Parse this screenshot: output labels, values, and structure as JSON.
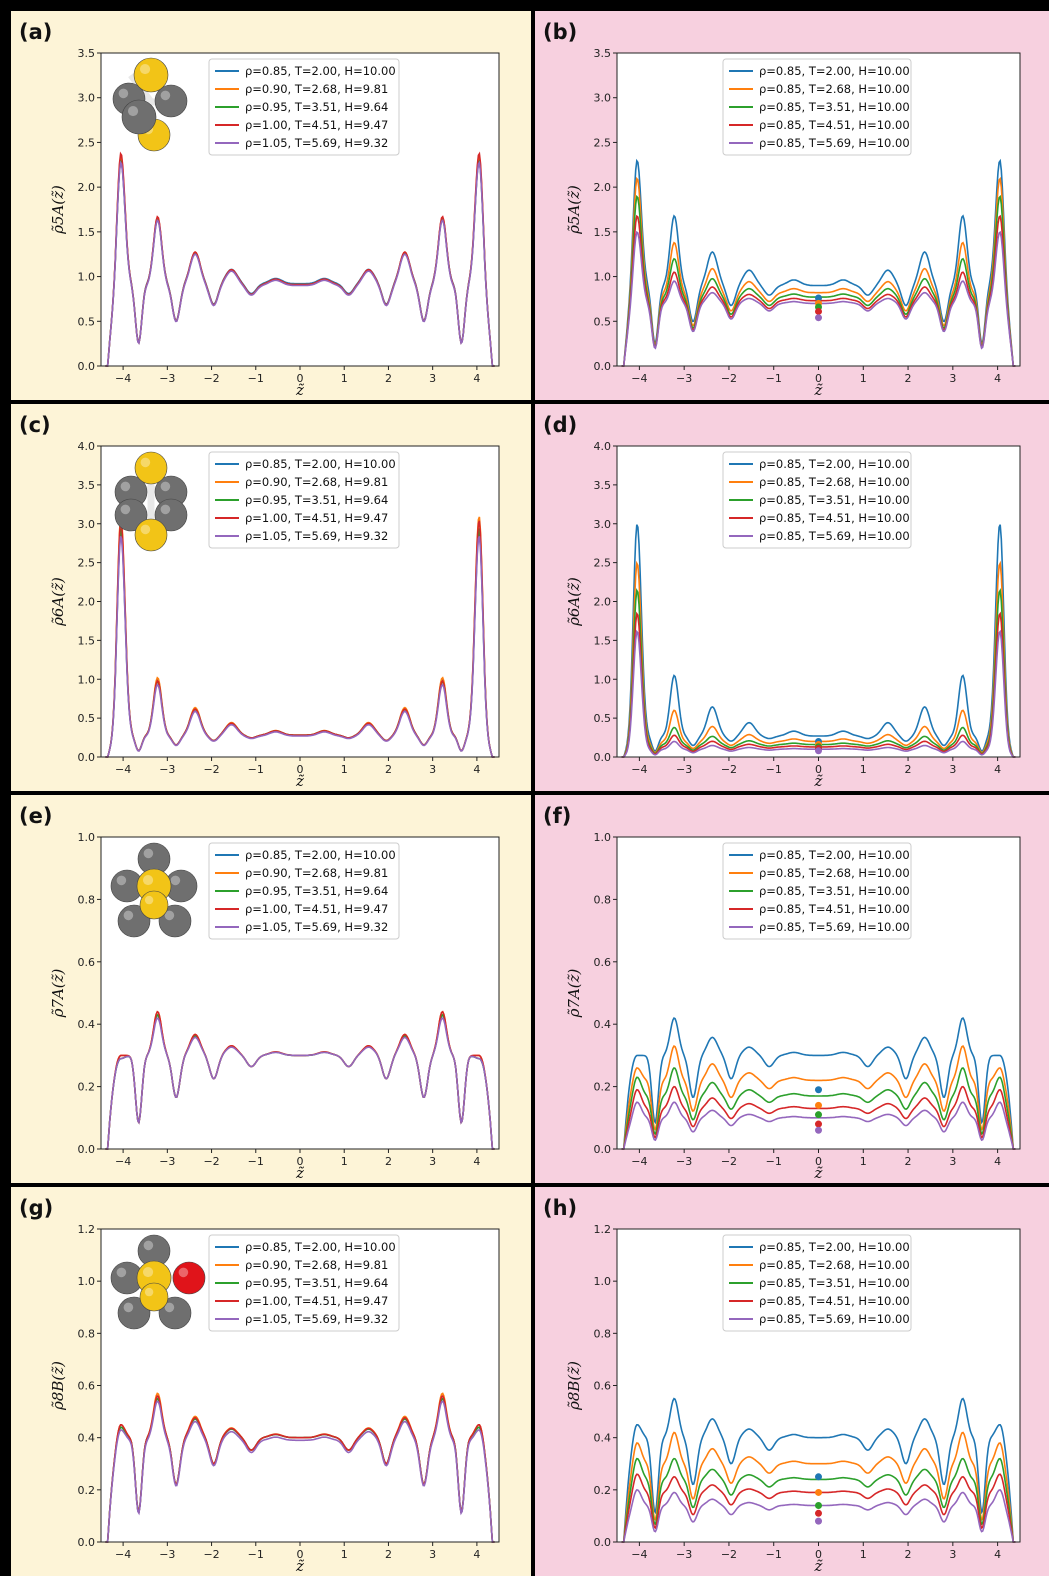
{
  "colors": {
    "series": [
      "#1f77b4",
      "#ff7f0e",
      "#2ca02c",
      "#d62728",
      "#9467bd"
    ],
    "left_bg": "#fdf4d7",
    "right_bg": "#f7d0df",
    "yellow_particle": "#f2c417",
    "grey_particle": "#6f6f6f",
    "red_particle": "#e0141a"
  },
  "icons": [
    "cluster-5A-icon",
    "cluster-6A-icon",
    "cluster-7A-icon",
    "cluster-8B-icon"
  ],
  "chart_data": [
    {
      "panel": "(a)",
      "type": "line",
      "xlabel": "z̃",
      "ylabel": "ρ̃5A(z̃)",
      "ylim": [
        0,
        3.5
      ],
      "yticks": [
        "0.0",
        "0.5",
        "1.0",
        "1.5",
        "2.0",
        "2.5",
        "3.0",
        "3.5"
      ],
      "xlim": [
        -4.5,
        4.5
      ],
      "xticks": [
        "−4",
        "−3",
        "−2",
        "−1",
        "0",
        "1",
        "2",
        "3",
        "4"
      ],
      "legend": [
        "ρ=0.85, T=2.00, H=10.00",
        "ρ=0.90, T=2.68, H=9.81",
        "ρ=0.95, T=3.51, H=9.64",
        "ρ=1.00, T=4.51, H=9.47",
        "ρ=1.05, T=5.69, H=9.32"
      ],
      "series": [
        {
          "name": "ρ=0.85, T=2.00, H=10.00",
          "wall": 2.3,
          "peak2": 1.65,
          "mid": 0.92
        },
        {
          "name": "ρ=0.90, T=2.68, H=9.81",
          "wall": 2.35,
          "peak2": 1.66,
          "mid": 0.91
        },
        {
          "name": "ρ=0.95, T=3.51, H=9.64",
          "wall": 2.3,
          "peak2": 1.64,
          "mid": 0.91
        },
        {
          "name": "ρ=1.00, T=4.51, H=9.47",
          "wall": 2.38,
          "peak2": 1.67,
          "mid": 0.91
        },
        {
          "name": "ρ=1.05, T=5.69, H=9.32",
          "wall": 2.28,
          "peak2": 1.63,
          "mid": 0.9
        }
      ],
      "points": []
    },
    {
      "panel": "(b)",
      "type": "line",
      "xlabel": "z̃",
      "ylabel": "ρ̃5A(z̃)",
      "ylim": [
        0,
        3.5
      ],
      "yticks": [
        "0.0",
        "0.5",
        "1.0",
        "1.5",
        "2.0",
        "2.5",
        "3.0",
        "3.5"
      ],
      "xlim": [
        -4.5,
        4.5
      ],
      "xticks": [
        "−4",
        "−3",
        "−2",
        "−1",
        "0",
        "1",
        "2",
        "3",
        "4"
      ],
      "legend": [
        "ρ=0.85, T=2.00, H=10.00",
        "ρ=0.85, T=2.68, H=10.00",
        "ρ=0.85, T=3.51, H=10.00",
        "ρ=0.85, T=4.51, H=10.00",
        "ρ=0.85, T=5.69, H=10.00"
      ],
      "series": [
        {
          "name": "ρ=0.85, T=2.00, H=10.00",
          "wall": 2.3,
          "peak2": 1.68,
          "mid": 0.9
        },
        {
          "name": "ρ=0.85, T=2.68, H=10.00",
          "wall": 2.1,
          "peak2": 1.38,
          "mid": 0.82
        },
        {
          "name": "ρ=0.85, T=3.51, H=10.00",
          "wall": 1.9,
          "peak2": 1.2,
          "mid": 0.77
        },
        {
          "name": "ρ=0.85, T=4.51, H=10.00",
          "wall": 1.68,
          "peak2": 1.05,
          "mid": 0.73
        },
        {
          "name": "ρ=0.85, T=5.69, H=10.00",
          "wall": 1.5,
          "peak2": 0.95,
          "mid": 0.7
        }
      ],
      "points": [
        0.76,
        0.7,
        0.66,
        0.61,
        0.54
      ]
    },
    {
      "panel": "(c)",
      "type": "line",
      "xlabel": "z̃",
      "ylabel": "ρ̃6A(z̃)",
      "ylim": [
        0,
        4.0
      ],
      "yticks": [
        "0.0",
        "0.5",
        "1.0",
        "1.5",
        "2.0",
        "2.5",
        "3.0",
        "3.5",
        "4.0"
      ],
      "xlim": [
        -4.5,
        4.5
      ],
      "xticks": [
        "−4",
        "−3",
        "−2",
        "−1",
        "0",
        "1",
        "2",
        "3",
        "4"
      ],
      "legend": [
        "ρ=0.85, T=2.00, H=10.00",
        "ρ=0.90, T=2.68, H=9.81",
        "ρ=0.95, T=3.51, H=9.64",
        "ρ=1.00, T=4.51, H=9.47",
        "ρ=1.05, T=5.69, H=9.32"
      ],
      "series": [
        {
          "name": "ρ=0.85, T=2.00, H=10.00",
          "wall": 2.9,
          "peak2": 1.0,
          "mid": 0.28
        },
        {
          "name": "ρ=0.90, T=2.68, H=9.81",
          "wall": 3.1,
          "peak2": 1.02,
          "mid": 0.28
        },
        {
          "name": "ρ=0.95, T=3.51, H=9.64",
          "wall": 2.95,
          "peak2": 0.97,
          "mid": 0.28
        },
        {
          "name": "ρ=1.00, T=4.51, H=9.47",
          "wall": 3.05,
          "peak2": 0.98,
          "mid": 0.28
        },
        {
          "name": "ρ=1.05, T=5.69, H=9.32",
          "wall": 2.85,
          "peak2": 0.93,
          "mid": 0.27
        }
      ],
      "points": []
    },
    {
      "panel": "(d)",
      "type": "line",
      "xlabel": "z̃",
      "ylabel": "ρ̃6A(z̃)",
      "ylim": [
        0,
        4.0
      ],
      "yticks": [
        "0.0",
        "0.5",
        "1.0",
        "1.5",
        "2.0",
        "2.5",
        "3.0",
        "3.5",
        "4.0"
      ],
      "xlim": [
        -4.5,
        4.5
      ],
      "xticks": [
        "−4",
        "−3",
        "−2",
        "−1",
        "0",
        "1",
        "2",
        "3",
        "4"
      ],
      "legend": [
        "ρ=0.85, T=2.00, H=10.00",
        "ρ=0.85, T=2.68, H=10.00",
        "ρ=0.85, T=3.51, H=10.00",
        "ρ=0.85, T=4.51, H=10.00",
        "ρ=0.85, T=5.69, H=10.00"
      ],
      "series": [
        {
          "name": "ρ=0.85, T=2.00, H=10.00",
          "wall": 3.0,
          "peak2": 1.05,
          "mid": 0.27
        },
        {
          "name": "ρ=0.85, T=2.68, H=10.00",
          "wall": 2.5,
          "peak2": 0.6,
          "mid": 0.2
        },
        {
          "name": "ρ=0.85, T=3.51, H=10.00",
          "wall": 2.15,
          "peak2": 0.38,
          "mid": 0.16
        },
        {
          "name": "ρ=0.85, T=4.51, H=10.00",
          "wall": 1.85,
          "peak2": 0.28,
          "mid": 0.13
        },
        {
          "name": "ρ=0.85, T=5.69, H=10.00",
          "wall": 1.62,
          "peak2": 0.2,
          "mid": 0.1
        }
      ],
      "points": [
        0.2,
        0.16,
        0.13,
        0.11,
        0.08
      ]
    },
    {
      "panel": "(e)",
      "type": "line",
      "xlabel": "z̃",
      "ylabel": "ρ̃7A(z̃)",
      "ylim": [
        0,
        1.0
      ],
      "yticks": [
        "0.0",
        "0.2",
        "0.4",
        "0.6",
        "0.8",
        "1.0"
      ],
      "xlim": [
        -4.5,
        4.5
      ],
      "xticks": [
        "−4",
        "−3",
        "−2",
        "−1",
        "0",
        "1",
        "2",
        "3",
        "4"
      ],
      "legend": [
        "ρ=0.85, T=2.00, H=10.00",
        "ρ=0.90, T=2.68, H=9.81",
        "ρ=0.95, T=3.51, H=9.64",
        "ρ=1.00, T=4.51, H=9.47",
        "ρ=1.05, T=5.69, H=9.32"
      ],
      "series": [
        {
          "name": "ρ=0.85, T=2.00, H=10.00",
          "wall": 0.29,
          "peak2": 0.43,
          "mid": 0.3
        },
        {
          "name": "ρ=0.90, T=2.68, H=9.81",
          "wall": 0.3,
          "peak2": 0.44,
          "mid": 0.3
        },
        {
          "name": "ρ=0.95, T=3.51, H=9.64",
          "wall": 0.29,
          "peak2": 0.43,
          "mid": 0.3
        },
        {
          "name": "ρ=1.00, T=4.51, H=9.47",
          "wall": 0.3,
          "peak2": 0.44,
          "mid": 0.3
        },
        {
          "name": "ρ=1.05, T=5.69, H=9.32",
          "wall": 0.29,
          "peak2": 0.42,
          "mid": 0.3
        }
      ],
      "points": []
    },
    {
      "panel": "(f)",
      "type": "line",
      "xlabel": "z̃",
      "ylabel": "ρ̃7A(z̃)",
      "ylim": [
        0,
        1.0
      ],
      "yticks": [
        "0.0",
        "0.2",
        "0.4",
        "0.6",
        "0.8",
        "1.0"
      ],
      "xlim": [
        -4.5,
        4.5
      ],
      "xticks": [
        "−4",
        "−3",
        "−2",
        "−1",
        "0",
        "1",
        "2",
        "3",
        "4"
      ],
      "legend": [
        "ρ=0.85, T=2.00, H=10.00",
        "ρ=0.85, T=2.68, H=10.00",
        "ρ=0.85, T=3.51, H=10.00",
        "ρ=0.85, T=4.51, H=10.00",
        "ρ=0.85, T=5.69, H=10.00"
      ],
      "series": [
        {
          "name": "ρ=0.85, T=2.00, H=10.00",
          "wall": 0.3,
          "peak2": 0.42,
          "mid": 0.3
        },
        {
          "name": "ρ=0.85, T=2.68, H=10.00",
          "wall": 0.26,
          "peak2": 0.33,
          "mid": 0.22
        },
        {
          "name": "ρ=0.85, T=3.51, H=10.00",
          "wall": 0.23,
          "peak2": 0.26,
          "mid": 0.17
        },
        {
          "name": "ρ=0.85, T=4.51, H=10.00",
          "wall": 0.19,
          "peak2": 0.2,
          "mid": 0.13
        },
        {
          "name": "ρ=0.85, T=5.69, H=10.00",
          "wall": 0.15,
          "peak2": 0.15,
          "mid": 0.1
        }
      ],
      "points": [
        0.19,
        0.14,
        0.11,
        0.08,
        0.06
      ]
    },
    {
      "panel": "(g)",
      "type": "line",
      "xlabel": "z̃",
      "ylabel": "ρ̃8B(z̃)",
      "ylim": [
        0,
        1.2
      ],
      "yticks": [
        "0.0",
        "0.2",
        "0.4",
        "0.6",
        "0.8",
        "1.0",
        "1.2"
      ],
      "xlim": [
        -4.5,
        4.5
      ],
      "xticks": [
        "−4",
        "−3",
        "−2",
        "−1",
        "0",
        "1",
        "2",
        "3",
        "4"
      ],
      "legend": [
        "ρ=0.85, T=2.00, H=10.00",
        "ρ=0.90, T=2.68, H=9.81",
        "ρ=0.95, T=3.51, H=9.64",
        "ρ=1.00, T=4.51, H=9.47",
        "ρ=1.05, T=5.69, H=9.32"
      ],
      "series": [
        {
          "name": "ρ=0.85, T=2.00, H=10.00",
          "wall": 0.44,
          "peak2": 0.55,
          "mid": 0.4
        },
        {
          "name": "ρ=0.90, T=2.68, H=9.81",
          "wall": 0.45,
          "peak2": 0.57,
          "mid": 0.4
        },
        {
          "name": "ρ=0.95, T=3.51, H=9.64",
          "wall": 0.44,
          "peak2": 0.55,
          "mid": 0.4
        },
        {
          "name": "ρ=1.00, T=4.51, H=9.47",
          "wall": 0.45,
          "peak2": 0.56,
          "mid": 0.4
        },
        {
          "name": "ρ=1.05, T=5.69, H=9.32",
          "wall": 0.43,
          "peak2": 0.54,
          "mid": 0.39
        }
      ],
      "points": []
    },
    {
      "panel": "(h)",
      "type": "line",
      "xlabel": "z̃",
      "ylabel": "ρ̃8B(z̃)",
      "ylim": [
        0,
        1.2
      ],
      "yticks": [
        "0.0",
        "0.2",
        "0.4",
        "0.6",
        "0.8",
        "1.0",
        "1.2"
      ],
      "xlim": [
        -4.5,
        4.5
      ],
      "xticks": [
        "−4",
        "−3",
        "−2",
        "−1",
        "0",
        "1",
        "2",
        "3",
        "4"
      ],
      "legend": [
        "ρ=0.85, T=2.00, H=10.00",
        "ρ=0.85, T=2.68, H=10.00",
        "ρ=0.85, T=3.51, H=10.00",
        "ρ=0.85, T=4.51, H=10.00",
        "ρ=0.85, T=5.69, H=10.00"
      ],
      "series": [
        {
          "name": "ρ=0.85, T=2.00, H=10.00",
          "wall": 0.45,
          "peak2": 0.55,
          "mid": 0.4
        },
        {
          "name": "ρ=0.85, T=2.68, H=10.00",
          "wall": 0.38,
          "peak2": 0.42,
          "mid": 0.3
        },
        {
          "name": "ρ=0.85, T=3.51, H=10.00",
          "wall": 0.32,
          "peak2": 0.32,
          "mid": 0.24
        },
        {
          "name": "ρ=0.85, T=4.51, H=10.00",
          "wall": 0.26,
          "peak2": 0.25,
          "mid": 0.19
        },
        {
          "name": "ρ=0.85, T=5.69, H=10.00",
          "wall": 0.2,
          "peak2": 0.19,
          "mid": 0.14
        }
      ],
      "points": [
        0.25,
        0.19,
        0.14,
        0.11,
        0.08
      ]
    }
  ]
}
